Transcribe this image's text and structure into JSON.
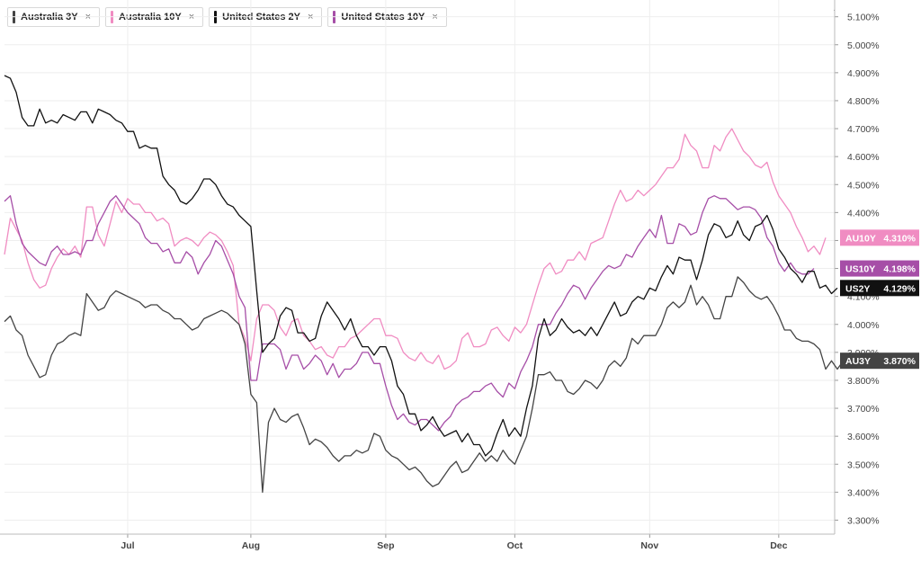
{
  "legend": [
    {
      "label": "Australia 3Y",
      "color": "#444444",
      "close": "×"
    },
    {
      "label": "Australia 10Y",
      "color": "#f08cc2",
      "close": "×"
    },
    {
      "label": "United States 2Y",
      "color": "#111111",
      "close": "×"
    },
    {
      "label": "United States 10Y",
      "color": "#a64ea7",
      "close": "×"
    }
  ],
  "menu_glyph": "·",
  "chart_data": {
    "type": "line",
    "title": "",
    "xlabel": "",
    "ylabel": "",
    "ylim": [
      3.25,
      5.16
    ],
    "y_ticks": [
      3.3,
      3.4,
      3.5,
      3.6,
      3.7,
      3.8,
      3.9,
      4.0,
      4.1,
      4.2,
      4.3,
      4.4,
      4.5,
      4.6,
      4.7,
      4.8,
      4.9,
      5.0,
      5.1
    ],
    "y_tick_labels": [
      "3.300%",
      "3.400%",
      "3.500%",
      "3.600%",
      "3.700%",
      "3.800%",
      "3.900%",
      "4.000%",
      "4.100%",
      "4.200%",
      "4.300%",
      "4.400%",
      "4.500%",
      "4.600%",
      "4.700%",
      "4.800%",
      "4.900%",
      "5.000%",
      "5.100%"
    ],
    "x_ticks": [
      {
        "label": "Jul",
        "index": 21
      },
      {
        "label": "Aug",
        "index": 42
      },
      {
        "label": "Sep",
        "index": 65
      },
      {
        "label": "Oct",
        "index": 87
      },
      {
        "label": "Nov",
        "index": 110
      },
      {
        "label": "Dec",
        "index": 132
      }
    ],
    "grid": true,
    "legend_position": "top-left",
    "series": [
      {
        "name": "Australia 10Y",
        "color": "#f08cc2",
        "badge": "AU10Y",
        "last_label": "4.310%",
        "values": [
          4.25,
          4.38,
          4.34,
          4.3,
          4.22,
          4.16,
          4.13,
          4.14,
          4.2,
          4.24,
          4.27,
          4.25,
          4.28,
          4.24,
          4.42,
          4.42,
          4.32,
          4.28,
          4.36,
          4.44,
          4.4,
          4.45,
          4.43,
          4.43,
          4.4,
          4.4,
          4.37,
          4.38,
          4.36,
          4.28,
          4.3,
          4.31,
          4.3,
          4.28,
          4.31,
          4.33,
          4.32,
          4.3,
          4.26,
          4.21,
          4.0,
          3.95,
          3.87,
          4.02,
          4.07,
          4.07,
          4.05,
          3.99,
          3.96,
          4.01,
          4.02,
          3.96,
          3.94,
          3.91,
          3.92,
          3.89,
          3.88,
          3.92,
          3.92,
          3.95,
          3.96,
          3.98,
          4.0,
          4.02,
          4.02,
          3.96,
          3.96,
          3.95,
          3.9,
          3.88,
          3.87,
          3.9,
          3.87,
          3.86,
          3.89,
          3.84,
          3.85,
          3.87,
          3.95,
          3.97,
          3.92,
          3.92,
          3.93,
          3.98,
          3.99,
          3.96,
          3.94,
          3.99,
          3.97,
          4.0,
          4.07,
          4.14,
          4.2,
          4.22,
          4.18,
          4.19,
          4.23,
          4.23,
          4.26,
          4.23,
          4.29,
          4.3,
          4.31,
          4.37,
          4.43,
          4.48,
          4.44,
          4.45,
          4.48,
          4.46,
          4.48,
          4.5,
          4.53,
          4.56,
          4.56,
          4.59,
          4.68,
          4.64,
          4.62,
          4.56,
          4.56,
          4.64,
          4.62,
          4.67,
          4.7,
          4.66,
          4.62,
          4.6,
          4.57,
          4.56,
          4.58,
          4.51,
          4.46,
          4.43,
          4.4,
          4.35,
          4.31,
          4.26,
          4.28,
          4.25,
          4.31
        ]
      },
      {
        "name": "United States 10Y",
        "color": "#a64ea7",
        "badge": "US10Y",
        "last_label": "4.198%",
        "values": [
          4.44,
          4.46,
          4.36,
          4.29,
          4.26,
          4.24,
          4.22,
          4.21,
          4.26,
          4.28,
          4.25,
          4.25,
          4.26,
          4.25,
          4.3,
          4.3,
          4.36,
          4.4,
          4.44,
          4.46,
          4.43,
          4.4,
          4.38,
          4.36,
          4.31,
          4.29,
          4.29,
          4.26,
          4.27,
          4.22,
          4.22,
          4.26,
          4.24,
          4.18,
          4.22,
          4.25,
          4.3,
          4.28,
          4.23,
          4.18,
          4.1,
          4.06,
          3.8,
          3.8,
          3.93,
          3.93,
          3.93,
          3.91,
          3.84,
          3.89,
          3.89,
          3.84,
          3.86,
          3.89,
          3.87,
          3.82,
          3.86,
          3.81,
          3.84,
          3.84,
          3.86,
          3.9,
          3.9,
          3.86,
          3.86,
          3.78,
          3.71,
          3.66,
          3.68,
          3.65,
          3.64,
          3.66,
          3.66,
          3.64,
          3.62,
          3.65,
          3.67,
          3.71,
          3.73,
          3.74,
          3.76,
          3.76,
          3.78,
          3.79,
          3.76,
          3.74,
          3.79,
          3.77,
          3.83,
          3.87,
          3.92,
          4.0,
          4.0,
          4.0,
          4.04,
          4.07,
          4.11,
          4.14,
          4.13,
          4.09,
          4.13,
          4.16,
          4.19,
          4.21,
          4.2,
          4.21,
          4.25,
          4.24,
          4.28,
          4.31,
          4.34,
          4.31,
          4.39,
          4.29,
          4.29,
          4.36,
          4.35,
          4.32,
          4.33,
          4.4,
          4.45,
          4.46,
          4.45,
          4.45,
          4.43,
          4.41,
          4.42,
          4.42,
          4.41,
          4.38,
          4.31,
          4.28,
          4.22,
          4.19,
          4.22,
          4.19,
          4.18,
          4.18,
          4.2
        ]
      },
      {
        "name": "United States 2Y",
        "color": "#111111",
        "badge": "US2Y",
        "last_label": "4.129%",
        "values": [
          4.89,
          4.88,
          4.83,
          4.74,
          4.71,
          4.71,
          4.77,
          4.72,
          4.73,
          4.72,
          4.75,
          4.74,
          4.73,
          4.76,
          4.76,
          4.72,
          4.77,
          4.76,
          4.75,
          4.73,
          4.72,
          4.69,
          4.69,
          4.63,
          4.64,
          4.63,
          4.63,
          4.53,
          4.5,
          4.48,
          4.44,
          4.43,
          4.45,
          4.48,
          4.52,
          4.52,
          4.5,
          4.46,
          4.43,
          4.42,
          4.39,
          4.37,
          4.35,
          4.12,
          3.9,
          3.93,
          3.95,
          4.03,
          4.06,
          4.05,
          3.97,
          3.97,
          3.94,
          3.95,
          4.03,
          4.08,
          4.05,
          4.02,
          3.98,
          4.02,
          3.96,
          3.92,
          3.92,
          3.89,
          3.92,
          3.92,
          3.87,
          3.78,
          3.75,
          3.68,
          3.68,
          3.62,
          3.64,
          3.67,
          3.63,
          3.6,
          3.61,
          3.62,
          3.58,
          3.61,
          3.57,
          3.57,
          3.53,
          3.55,
          3.61,
          3.66,
          3.6,
          3.63,
          3.6,
          3.7,
          3.78,
          3.95,
          4.02,
          3.96,
          3.98,
          4.02,
          3.99,
          3.97,
          3.98,
          3.96,
          3.99,
          3.96,
          4.0,
          4.04,
          4.08,
          4.03,
          4.04,
          4.08,
          4.1,
          4.09,
          4.13,
          4.12,
          4.17,
          4.21,
          4.18,
          4.24,
          4.23,
          4.23,
          4.16,
          4.23,
          4.32,
          4.36,
          4.35,
          4.31,
          4.32,
          4.37,
          4.32,
          4.3,
          4.35,
          4.36,
          4.39,
          4.34,
          4.27,
          4.24,
          4.2,
          4.18,
          4.15,
          4.19,
          4.19,
          4.13,
          4.14,
          4.11,
          4.13
        ]
      },
      {
        "name": "Australia 3Y",
        "color": "#444444",
        "badge": "AU3Y",
        "last_label": "3.870%",
        "values": [
          4.01,
          4.03,
          3.98,
          3.96,
          3.89,
          3.85,
          3.81,
          3.82,
          3.89,
          3.93,
          3.94,
          3.96,
          3.97,
          3.96,
          4.11,
          4.08,
          4.05,
          4.06,
          4.1,
          4.12,
          4.11,
          4.1,
          4.09,
          4.08,
          4.06,
          4.07,
          4.07,
          4.05,
          4.04,
          4.02,
          4.02,
          4.0,
          3.98,
          3.99,
          4.02,
          4.03,
          4.04,
          4.05,
          4.04,
          4.02,
          4.0,
          3.93,
          3.75,
          3.72,
          3.4,
          3.65,
          3.7,
          3.66,
          3.65,
          3.67,
          3.68,
          3.63,
          3.57,
          3.59,
          3.58,
          3.56,
          3.53,
          3.51,
          3.53,
          3.53,
          3.55,
          3.54,
          3.55,
          3.61,
          3.6,
          3.55,
          3.53,
          3.52,
          3.5,
          3.48,
          3.49,
          3.47,
          3.44,
          3.42,
          3.43,
          3.46,
          3.49,
          3.51,
          3.47,
          3.48,
          3.51,
          3.54,
          3.51,
          3.53,
          3.51,
          3.55,
          3.52,
          3.5,
          3.55,
          3.6,
          3.7,
          3.82,
          3.82,
          3.83,
          3.8,
          3.8,
          3.76,
          3.75,
          3.77,
          3.8,
          3.79,
          3.77,
          3.8,
          3.85,
          3.87,
          3.85,
          3.88,
          3.95,
          3.93,
          3.96,
          3.96,
          3.96,
          4.0,
          4.06,
          4.08,
          4.06,
          4.08,
          4.14,
          4.07,
          4.1,
          4.07,
          4.02,
          4.02,
          4.1,
          4.1,
          4.17,
          4.15,
          4.12,
          4.1,
          4.09,
          4.1,
          4.07,
          4.03,
          3.98,
          3.98,
          3.95,
          3.94,
          3.94,
          3.93,
          3.91,
          3.84,
          3.87,
          3.84,
          3.87
        ]
      }
    ]
  }
}
